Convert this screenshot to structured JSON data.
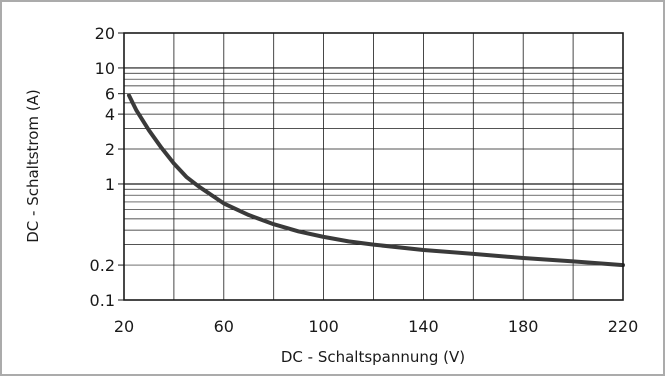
{
  "chart_data": {
    "type": "line",
    "title": "",
    "xlabel": "DC - Schaltspannung (V)",
    "ylabel": "DC - Schaltstrom (A)",
    "x_scale": "linear",
    "y_scale": "log",
    "xlim": [
      20,
      220
    ],
    "ylim": [
      0.1,
      20
    ],
    "x_ticks": [
      20,
      60,
      100,
      140,
      180,
      220
    ],
    "x_tick_labels": [
      "20",
      "60",
      "100",
      "140",
      "180",
      "220"
    ],
    "y_ticks": [
      0.1,
      0.2,
      1,
      2,
      4,
      6,
      10,
      20
    ],
    "y_tick_labels": [
      "0.1",
      "0.2",
      "1",
      "2",
      "4",
      "6",
      "10",
      "20"
    ],
    "grid": true,
    "series": [
      {
        "color": "#3a3a3a",
        "x": [
          22,
          25,
          30,
          35,
          40,
          45,
          50,
          60,
          70,
          80,
          90,
          100,
          110,
          120,
          140,
          160,
          180,
          200,
          220
        ],
        "y": [
          5.8,
          4.3,
          2.9,
          2.05,
          1.5,
          1.15,
          0.95,
          0.68,
          0.54,
          0.45,
          0.39,
          0.35,
          0.32,
          0.3,
          0.27,
          0.25,
          0.23,
          0.215,
          0.2
        ]
      }
    ]
  }
}
